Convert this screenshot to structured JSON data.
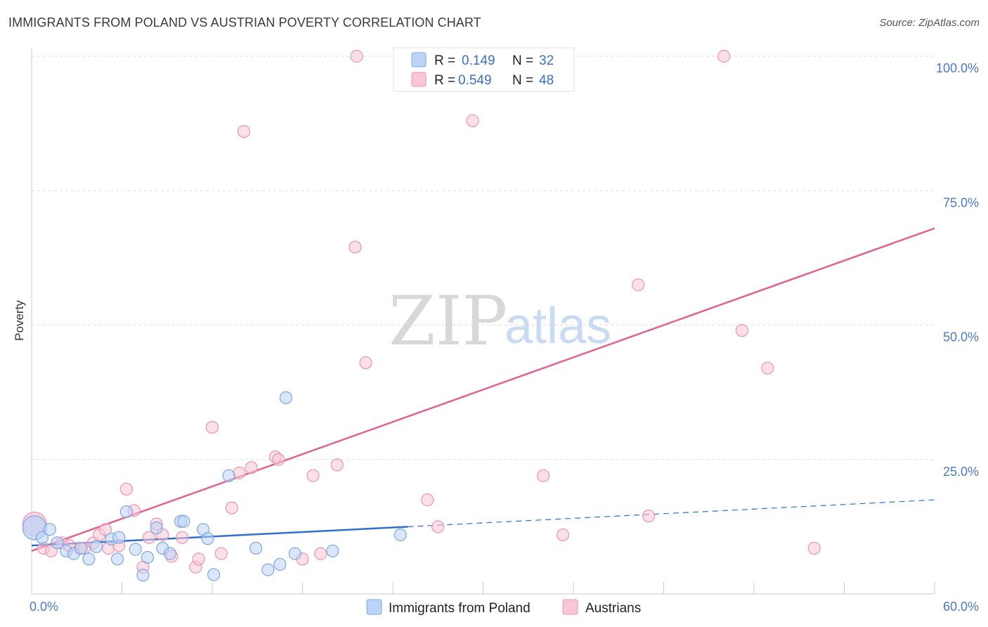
{
  "title": "IMMIGRANTS FROM POLAND VS AUSTRIAN POVERTY CORRELATION CHART",
  "source": "Source: ZipAtlas.com",
  "watermark": {
    "zip": "ZIP",
    "atlas": "atlas"
  },
  "colors": {
    "poland_fill": "#bcd4f7",
    "poland_stroke": "#7ea6e0",
    "poland_line": "#2f6fd0",
    "austrians_fill": "#f9c6d6",
    "austrians_stroke": "#eb94b2",
    "austrians_line": "#e2628e",
    "tick_blue": "#4a7ac9",
    "grid": "#dddddd"
  },
  "legend": {
    "rows": [
      {
        "r_label": "R = ",
        "r_value": "0.149",
        "n_label": "N = ",
        "n_value": "32"
      },
      {
        "r_label": "R = ",
        "r_value": "0.549",
        "n_label": "N = ",
        "n_value": "48"
      }
    ]
  },
  "bottom_legend": [
    "Immigrants from Poland",
    "Austrians"
  ],
  "chart_data": {
    "type": "scatter",
    "ylabel": "Poverty",
    "xlim": [
      0,
      60
    ],
    "ylim": [
      0,
      100
    ],
    "y_ticks": [
      {
        "value": 25,
        "label": "25.0%"
      },
      {
        "value": 50,
        "label": "50.0%"
      },
      {
        "value": 75,
        "label": "75.0%"
      },
      {
        "value": 100,
        "label": "100.0%"
      }
    ],
    "x_tick_labels": [
      {
        "value": 0,
        "label": "0.0%"
      },
      {
        "value": 60,
        "label": "60.0%"
      }
    ],
    "grid": true,
    "legend_position": "top-center",
    "series": [
      {
        "name": "Immigrants from Poland",
        "r": 0.149,
        "n": 32,
        "points": [
          [
            0.2,
            12.3
          ],
          [
            0.7,
            10.5
          ],
          [
            1.2,
            12.0
          ],
          [
            1.7,
            9.5
          ],
          [
            2.3,
            8.0
          ],
          [
            2.8,
            7.5
          ],
          [
            3.3,
            8.5
          ],
          [
            3.8,
            6.5
          ],
          [
            4.3,
            8.8
          ],
          [
            5.3,
            10.2
          ],
          [
            5.8,
            10.5
          ],
          [
            5.7,
            6.5
          ],
          [
            6.3,
            15.3
          ],
          [
            6.9,
            8.3
          ],
          [
            7.4,
            3.5
          ],
          [
            7.7,
            6.8
          ],
          [
            8.3,
            12.3
          ],
          [
            8.7,
            8.5
          ],
          [
            9.2,
            7.5
          ],
          [
            9.9,
            13.5
          ],
          [
            10.1,
            13.5
          ],
          [
            11.4,
            12.0
          ],
          [
            11.7,
            10.3
          ],
          [
            12.1,
            3.6
          ],
          [
            13.1,
            22.0
          ],
          [
            14.9,
            8.5
          ],
          [
            15.7,
            4.5
          ],
          [
            16.5,
            5.5
          ],
          [
            16.9,
            36.5
          ],
          [
            17.5,
            7.5
          ],
          [
            20.0,
            8.0
          ],
          [
            24.5,
            11.0
          ]
        ],
        "trend": {
          "x0": 0,
          "y0": 9.0,
          "x1": 25.0,
          "y1": 12.5,
          "dash_x1": 60,
          "dash_y1": 17.5
        }
      },
      {
        "name": "Austrians",
        "r": 0.549,
        "n": 48,
        "points": [
          [
            0.2,
            13.0
          ],
          [
            0.8,
            8.5
          ],
          [
            1.3,
            8.0
          ],
          [
            2.0,
            9.5
          ],
          [
            2.5,
            9.0
          ],
          [
            3.2,
            8.5
          ],
          [
            3.5,
            8.5
          ],
          [
            4.1,
            9.5
          ],
          [
            4.5,
            11.0
          ],
          [
            4.9,
            12.0
          ],
          [
            5.1,
            8.5
          ],
          [
            5.8,
            9.0
          ],
          [
            6.3,
            19.5
          ],
          [
            6.8,
            15.5
          ],
          [
            7.4,
            5.0
          ],
          [
            7.8,
            10.5
          ],
          [
            8.3,
            13.0
          ],
          [
            8.7,
            11.0
          ],
          [
            9.3,
            7.0
          ],
          [
            10.0,
            10.5
          ],
          [
            10.9,
            5.0
          ],
          [
            11.1,
            6.5
          ],
          [
            12.0,
            31.0
          ],
          [
            12.6,
            7.5
          ],
          [
            13.3,
            16.0
          ],
          [
            13.8,
            22.5
          ],
          [
            14.1,
            86.0
          ],
          [
            14.6,
            23.5
          ],
          [
            16.2,
            25.5
          ],
          [
            16.4,
            25.0
          ],
          [
            18.0,
            6.5
          ],
          [
            18.7,
            22.0
          ],
          [
            19.2,
            7.5
          ],
          [
            20.3,
            24.0
          ],
          [
            21.5,
            64.5
          ],
          [
            21.6,
            100.0
          ],
          [
            22.2,
            43.0
          ],
          [
            26.3,
            17.5
          ],
          [
            27.0,
            12.5
          ],
          [
            29.3,
            88.0
          ],
          [
            34.0,
            22.0
          ],
          [
            35.3,
            11.0
          ],
          [
            40.3,
            57.5
          ],
          [
            41.0,
            14.5
          ],
          [
            46.0,
            100.0
          ],
          [
            47.2,
            49.0
          ],
          [
            48.9,
            42.0
          ],
          [
            52.0,
            8.5
          ]
        ],
        "trend": {
          "x0": 0,
          "y0": 8.0,
          "x1": 60,
          "y1": 68.0
        }
      }
    ]
  }
}
